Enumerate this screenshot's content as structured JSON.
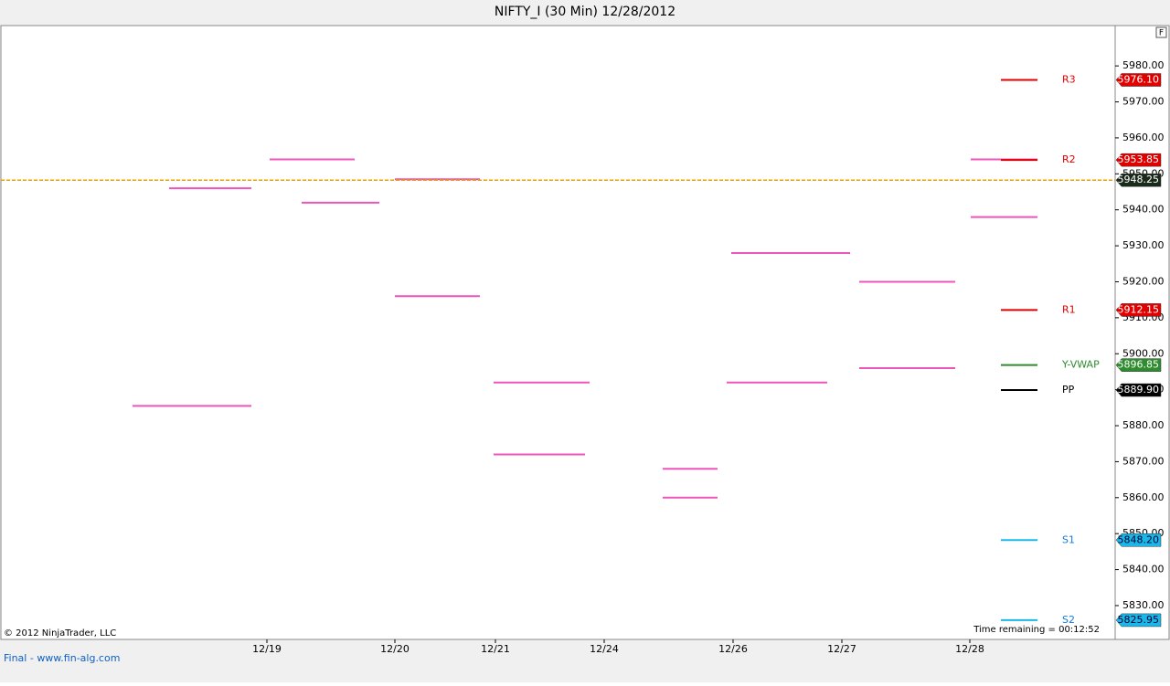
{
  "chart_data": {
    "type": "market-profile",
    "title": "NIFTY_I (30 Min)  12/28/2012",
    "ylim": [
      5820.6,
      5990.7
    ],
    "yticks": [
      {
        "value": 5830,
        "label": "5830.00"
      },
      {
        "value": 5840,
        "label": "5840.00"
      },
      {
        "value": 5850,
        "label": "5850.00"
      },
      {
        "value": 5860,
        "label": "5860.00"
      },
      {
        "value": 5870,
        "label": "5870.00"
      },
      {
        "value": 5880,
        "label": "5880.00"
      },
      {
        "value": 5890,
        "label": "5890.00"
      },
      {
        "value": 5900,
        "label": "5900.00"
      },
      {
        "value": 5910,
        "label": "5910.00"
      },
      {
        "value": 5920,
        "label": "5920.00"
      },
      {
        "value": 5930,
        "label": "5930.00"
      },
      {
        "value": 5940,
        "label": "5940.00"
      },
      {
        "value": 5950,
        "label": "5950.00"
      },
      {
        "value": 5960,
        "label": "5960.00"
      },
      {
        "value": 5970,
        "label": "5970.00"
      },
      {
        "value": 5980,
        "label": "5980.00"
      }
    ],
    "categories": [
      "12/19",
      "12/20",
      "12/21",
      "12/24",
      "12/26",
      "12/27",
      "12/28"
    ],
    "levels": [
      {
        "name": "R3",
        "value": 5976.1,
        "value_label": "5976.10",
        "color": "#e00000"
      },
      {
        "name": "R2",
        "value": 5953.85,
        "value_label": "5953.85",
        "color": "#e00000"
      },
      {
        "name": "R1",
        "value": 5912.15,
        "value_label": "5912.15",
        "color": "#e00000"
      },
      {
        "name": "Y-VWAP",
        "value": 5896.85,
        "value_label": "5896.85",
        "color": "#2e8b2e"
      },
      {
        "name": "PP",
        "value": 5889.9,
        "value_label": "5889.90",
        "color": "#000000"
      },
      {
        "name": "S1",
        "value": 5848.2,
        "value_label": "5848.20",
        "color": "#1ab8e8"
      },
      {
        "name": "S2",
        "value": 5825.95,
        "value_label": "5825.95",
        "color": "#1ab8e8"
      }
    ],
    "last_price": {
      "value": 5948.25,
      "label": "5948.25",
      "color": "#e8a000"
    },
    "poc_lines": {
      "color": "#ee55bb",
      "values": [
        5885.5,
        5946,
        5954,
        5942,
        5948.5,
        5916,
        5892,
        5872,
        5868,
        5860,
        5928,
        5892,
        5920,
        5896,
        5954,
        5938
      ]
    },
    "copyright": "© 2012 NinjaTrader, LLC",
    "time_remaining": "Time remaining = 00:12:52",
    "footer": "Final - www.fin-alg.com",
    "panel_button": "F"
  }
}
